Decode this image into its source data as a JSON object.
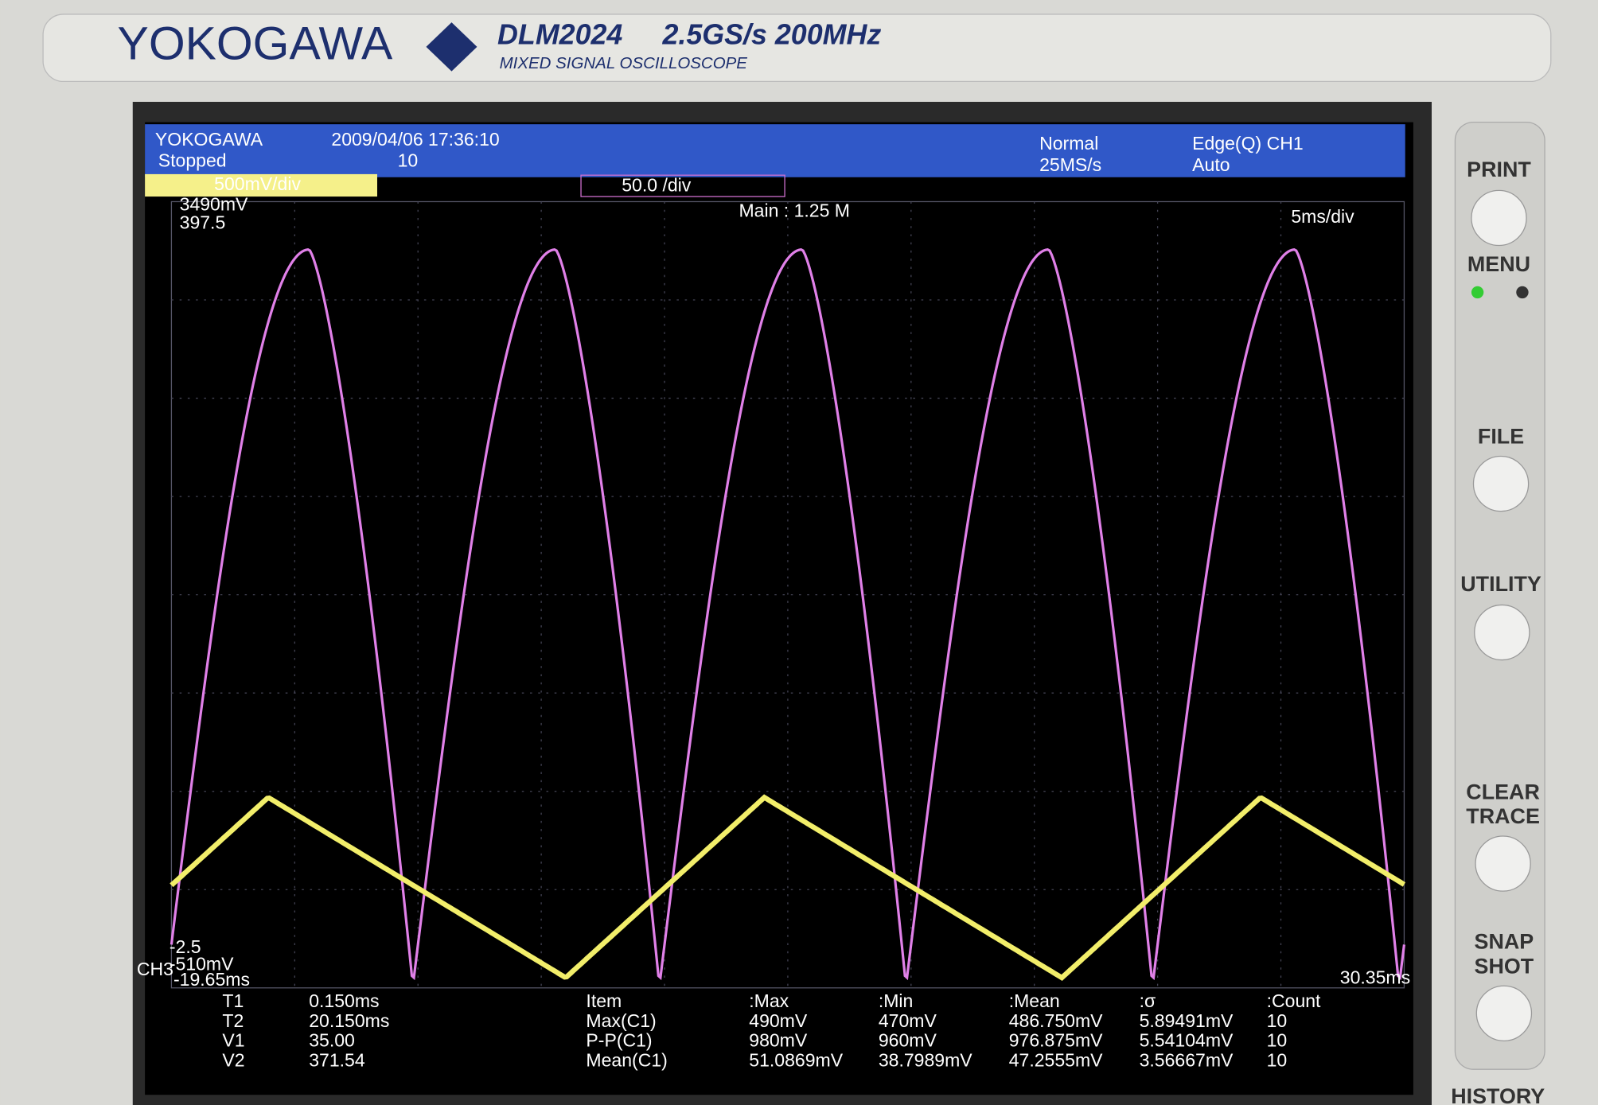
{
  "bezel": {
    "brand": "YOKOGAWA",
    "model": "DLM2024",
    "spec": "2.5GS/s 200MHz",
    "subtitle": "MIXED SIGNAL OSCILLOSCOPE"
  },
  "screen": {
    "brand": "YOKOGAWA",
    "datetime": "2009/04/06 17:36:10",
    "status": "Stopped",
    "count": "10",
    "mode": "Normal",
    "sample_rate": "25MS/s",
    "trigger": "Edge(Q) CH1",
    "trigger_mode": "Auto",
    "ch1_scale": "500mV/div",
    "ch3_scale": "50.0 /div",
    "ch1_top": "3490mV",
    "ch3_top": "397.5",
    "record": "Main : 1.25 M",
    "timebase": "5ms/div",
    "ch3_bottom": "-2.5",
    "ch1_bottom": "-510mV",
    "time_start": "-19.65ms",
    "time_end": "30.35ms",
    "ch3_marker": "CH3"
  },
  "cursors": {
    "rows": [
      [
        "T1",
        "0.150ms"
      ],
      [
        "T2",
        "20.150ms"
      ],
      [
        "V1",
        "35.00"
      ],
      [
        "V2",
        "371.54"
      ]
    ]
  },
  "stats": {
    "header": [
      "Item",
      ":Max",
      ":Min",
      ":Mean",
      ":σ",
      ":Count"
    ],
    "rows": [
      [
        "Max(C1)",
        "490mV",
        "470mV",
        "486.750mV",
        "5.89491mV",
        "10"
      ],
      [
        "P-P(C1)",
        "980mV",
        "960mV",
        "976.875mV",
        "5.54104mV",
        "10"
      ],
      [
        "Mean(C1)",
        "51.0869mV",
        "38.7989mV",
        "47.2555mV",
        "3.56667mV",
        "10"
      ]
    ]
  },
  "buttons": [
    "PRINT",
    "MENU",
    "FILE",
    "UTILITY",
    "CLEAR",
    "TRACE",
    "SNAP",
    "SHOT",
    "HISTORY"
  ]
}
